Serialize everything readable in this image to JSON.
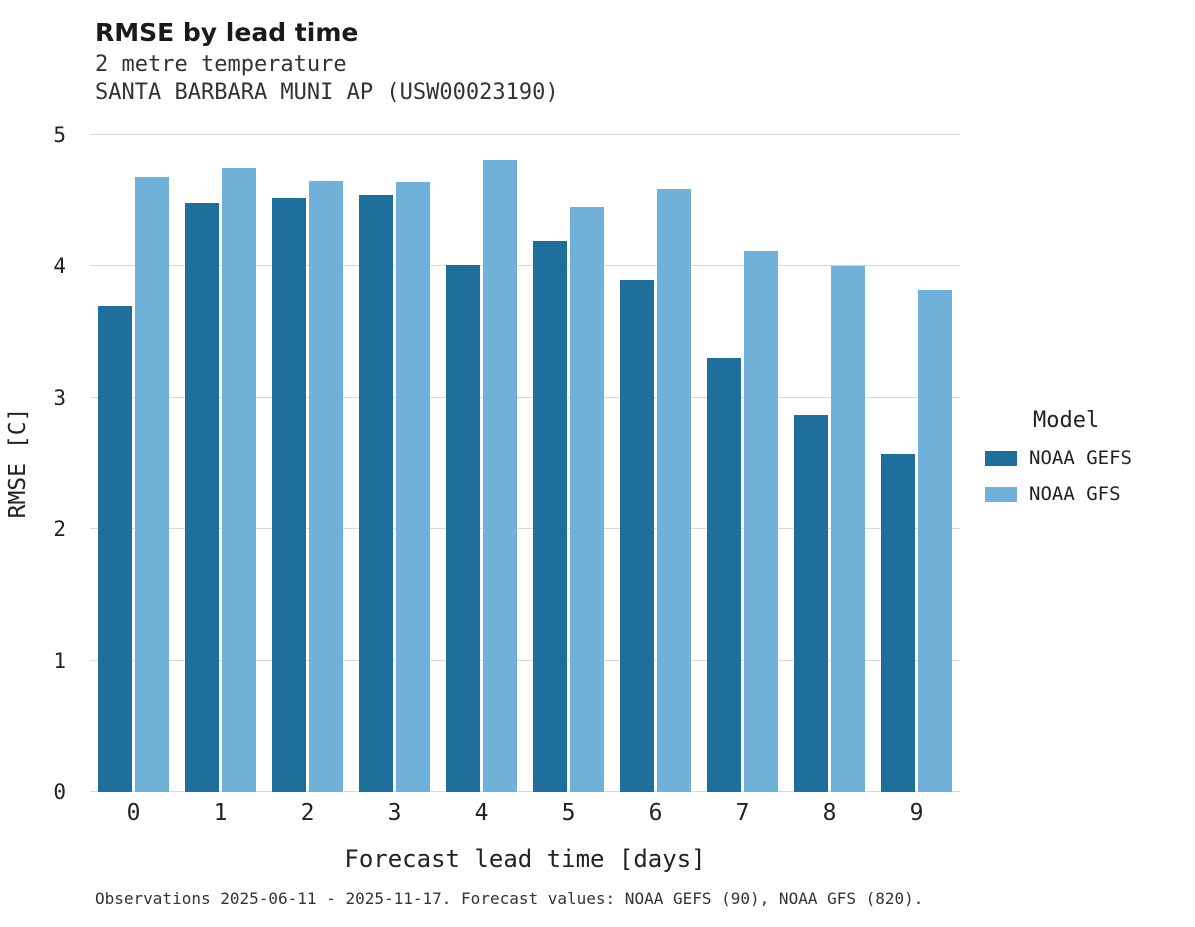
{
  "header": {
    "title": "RMSE by lead time",
    "subtitle1": "2 metre temperature",
    "subtitle2": "SANTA BARBARA MUNI AP (USW00023190)"
  },
  "axes": {
    "xlabel": "Forecast lead time [days]",
    "ylabel": "RMSE [C]"
  },
  "legend": {
    "title": "Model",
    "entries": [
      {
        "label": "NOAA GEFS",
        "color": "#1e6f9c"
      },
      {
        "label": "NOAA GFS",
        "color": "#6fb1d8"
      }
    ]
  },
  "caption": "Observations 2025-06-11 - 2025-11-17. Forecast values: NOAA GEFS (90), NOAA GFS (820).",
  "chart_data": {
    "type": "bar",
    "title": "RMSE by lead time",
    "subtitle": "2 metre temperature — SANTA BARBARA MUNI AP (USW00023190)",
    "xlabel": "Forecast lead time [days]",
    "ylabel": "RMSE [C]",
    "categories": [
      "0",
      "1",
      "2",
      "3",
      "4",
      "5",
      "6",
      "7",
      "8",
      "9"
    ],
    "series": [
      {
        "name": "NOAA GEFS",
        "color": "#1e6f9c",
        "values": [
          3.7,
          4.48,
          4.52,
          4.54,
          4.01,
          4.19,
          3.9,
          3.3,
          2.87,
          2.57
        ]
      },
      {
        "name": "NOAA GFS",
        "color": "#6fb1d8",
        "values": [
          4.68,
          4.75,
          4.65,
          4.64,
          4.81,
          4.45,
          4.59,
          4.12,
          4.0,
          3.82
        ]
      }
    ],
    "ylim": [
      0,
      5
    ],
    "yticks": [
      0,
      1,
      2,
      3,
      4,
      5
    ],
    "grid": true,
    "legend_position": "right"
  }
}
